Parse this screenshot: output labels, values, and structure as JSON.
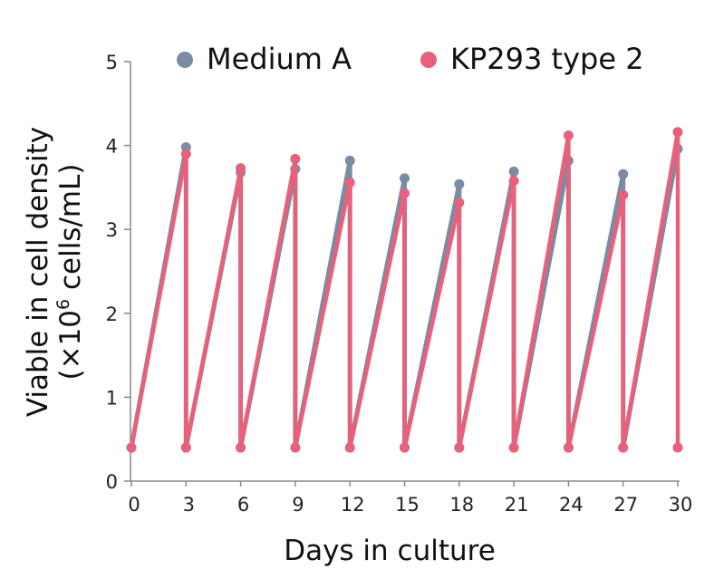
{
  "chart_data": {
    "type": "line",
    "xlabel": "Days in culture",
    "ylabel_line1": "Viable in cell density",
    "ylabel_line2_prefix": "(×10",
    "ylabel_line2_sup": "6",
    "ylabel_line2_suffix": " cells/mL)",
    "xlim": [
      0,
      30
    ],
    "ylim": [
      0,
      5
    ],
    "x_ticks": [
      0,
      3,
      6,
      9,
      12,
      15,
      18,
      21,
      24,
      27,
      30
    ],
    "x_tick_labels": [
      "0",
      "3",
      "6",
      "9",
      "12",
      "15",
      "18",
      "21",
      "24",
      "27",
      "30"
    ],
    "y_ticks": [
      0,
      1,
      2,
      3,
      4,
      5
    ],
    "y_tick_labels": [
      "0",
      "1",
      "2",
      "3",
      "4",
      "5"
    ],
    "grid": false,
    "legend_position": "top",
    "series": [
      {
        "name": "Medium A",
        "color": "#7a8ba3",
        "points": [
          [
            0,
            0.4
          ],
          [
            3,
            3.98
          ],
          [
            3,
            0.4
          ],
          [
            6,
            3.68
          ],
          [
            6,
            0.4
          ],
          [
            9,
            3.72
          ],
          [
            9,
            0.4
          ],
          [
            12,
            3.82
          ],
          [
            12,
            0.4
          ],
          [
            15,
            3.61
          ],
          [
            15,
            0.4
          ],
          [
            18,
            3.54
          ],
          [
            18,
            0.4
          ],
          [
            21,
            3.69
          ],
          [
            21,
            0.4
          ],
          [
            24,
            3.82
          ],
          [
            24,
            0.4
          ],
          [
            27,
            3.66
          ],
          [
            27,
            0.4
          ],
          [
            30,
            3.96
          ]
        ]
      },
      {
        "name": "KP293 type 2",
        "color": "#e8607a",
        "points": [
          [
            0,
            0.4
          ],
          [
            3,
            3.9
          ],
          [
            3,
            0.4
          ],
          [
            6,
            3.73
          ],
          [
            6,
            0.4
          ],
          [
            9,
            3.84
          ],
          [
            9,
            0.4
          ],
          [
            12,
            3.56
          ],
          [
            12,
            0.4
          ],
          [
            15,
            3.43
          ],
          [
            15,
            0.4
          ],
          [
            18,
            3.32
          ],
          [
            18,
            0.4
          ],
          [
            21,
            3.58
          ],
          [
            21,
            0.4
          ],
          [
            24,
            4.12
          ],
          [
            24,
            0.4
          ],
          [
            27,
            3.41
          ],
          [
            27,
            0.4
          ],
          [
            30,
            4.16
          ],
          [
            30,
            0.4
          ]
        ]
      }
    ]
  }
}
